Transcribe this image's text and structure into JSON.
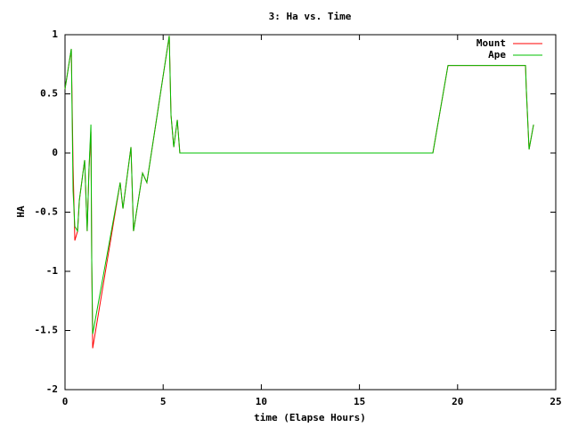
{
  "chart_data": {
    "type": "line",
    "title": "3: Ha vs. Time",
    "xlabel": "time (Elapse Hours)",
    "ylabel": "HA",
    "x": [
      0,
      0.32,
      0.41,
      0.5,
      0.64,
      0.73,
      1.0,
      1.13,
      1.22,
      1.32,
      1.36,
      1.41,
      2.81,
      2.95,
      3.36,
      3.49,
      3.95,
      4.17,
      5.31,
      5.4,
      5.54,
      5.72,
      5.85,
      18.74,
      19.51,
      23.46,
      23.5,
      23.64,
      23.87
    ],
    "series": [
      {
        "name": "Mount",
        "color": "#ff0000",
        "values": [
          0.54,
          0.88,
          -0.1,
          -0.74,
          -0.66,
          -0.4,
          -0.06,
          -0.66,
          -0.14,
          0.18,
          -0.89,
          -1.65,
          -0.25,
          -0.47,
          0.05,
          -0.66,
          -0.17,
          -0.25,
          0.99,
          0.32,
          0.05,
          0.28,
          0,
          0,
          0.74,
          0.74,
          0.54,
          0.03,
          0.24
        ]
      },
      {
        "name": "Ape",
        "color": "#00c000",
        "values": [
          0.54,
          0.88,
          -0.32,
          -0.62,
          -0.66,
          -0.4,
          -0.06,
          -0.66,
          -0.14,
          0.24,
          -0.89,
          -1.53,
          -0.25,
          -0.47,
          0.05,
          -0.66,
          -0.17,
          -0.25,
          0.99,
          0.32,
          0.05,
          0.28,
          0,
          0,
          0.74,
          0.74,
          0.54,
          0.03,
          0.24
        ]
      }
    ],
    "xlim": [
      0,
      25
    ],
    "xticks": [
      0,
      5,
      10,
      15,
      20,
      25
    ],
    "ylim": [
      -2,
      1
    ],
    "yticks": [
      -2,
      -1.5,
      -1,
      -0.5,
      0,
      0.5,
      1
    ],
    "legend": "top-right"
  }
}
